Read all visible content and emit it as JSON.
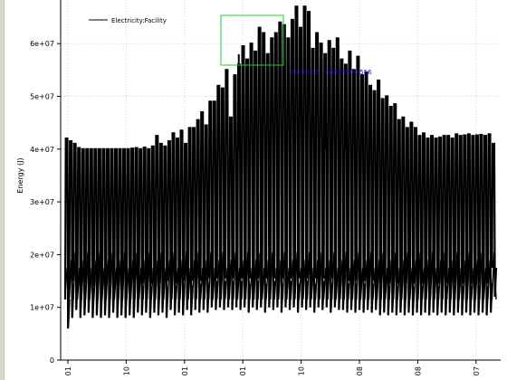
{
  "chart_data": {
    "type": "line",
    "ylabel": "Energy (J)",
    "ylim": [
      0,
      70000000
    ],
    "y_ticks": [
      {
        "value": 0,
        "label": "0"
      },
      {
        "value": 10000000,
        "label": "1e+07"
      },
      {
        "value": 20000000,
        "label": "2e+07"
      },
      {
        "value": 30000000,
        "label": "3e+07"
      },
      {
        "value": 40000000,
        "label": "4e+07"
      },
      {
        "value": 50000000,
        "label": "5e+07"
      },
      {
        "value": 60000000,
        "label": "6e+07"
      }
    ],
    "x_tick_labels": [
      "01",
      "10",
      "01",
      "01",
      "10",
      "08",
      "08",
      "07"
    ],
    "grid": true,
    "legend_position": "top-left",
    "series": [
      {
        "name": "Electricity:Facility",
        "color": "#000000",
        "daily_peak": [
          42000000,
          41500000,
          41000000,
          40200000,
          40000000,
          40000000,
          40000000,
          40000000,
          40000000,
          40000000,
          40000000,
          40000000,
          40000000,
          40000000,
          40000000,
          40000000,
          40100000,
          40200000,
          40000000,
          40300000,
          40000000,
          40500000,
          42500000,
          41000000,
          40500000,
          41500000,
          43000000,
          42000000,
          43500000,
          41000000,
          44000000,
          44000000,
          45500000,
          47000000,
          44500000,
          49000000,
          49000000,
          52000000,
          51500000,
          55000000,
          46000000,
          54000000,
          56000000,
          59500000,
          57000000,
          60000000,
          58500000,
          63000000,
          62000000,
          58000000,
          61000000,
          62000000,
          64000000,
          63500000,
          61000000,
          64500000,
          67000000,
          63000000,
          67000000,
          66000000,
          59000000,
          62000000,
          60000000,
          58000000,
          60500000,
          59000000,
          61000000,
          57000000,
          56000000,
          58500000,
          55000000,
          57500000,
          54000000,
          54500000,
          52000000,
          51000000,
          53000000,
          49500000,
          50000000,
          48000000,
          48500000,
          45500000,
          46000000,
          44000000,
          45000000,
          44000000,
          42500000,
          43000000,
          42000000,
          42500000,
          42000000,
          42200000,
          42500000,
          42500000,
          42000000,
          42800000,
          42500000,
          42600000,
          42800000,
          42500000,
          42600000,
          42700000,
          42500000,
          42800000,
          41000000
        ],
        "daily_low": [
          6000000,
          8000000,
          9500000,
          8000000,
          8500000,
          9000000,
          8000000,
          8500000,
          8000000,
          8500000,
          8000000,
          9000000,
          8000000,
          8500000,
          8000000,
          8500000,
          8000000,
          9000000,
          8500000,
          9000000,
          8000000,
          9000000,
          8500000,
          9000000,
          8000000,
          9500000,
          8500000,
          9000000,
          8500000,
          9500000,
          8500000,
          9500000,
          9000000,
          9500000,
          9000000,
          10000000,
          9500000,
          10000000,
          9500000,
          10000000,
          9500000,
          10000000,
          9500000,
          10000000,
          9000000,
          10000000,
          9500000,
          10000000,
          9000000,
          10000000,
          9500000,
          10000000,
          9000000,
          10000000,
          9500000,
          10000000,
          9000000,
          10000000,
          9500000,
          10000000,
          9000000,
          10000000,
          9500000,
          10000000,
          9000000,
          10000000,
          9500000,
          9500000,
          9000000,
          9500000,
          9000000,
          9500000,
          9000000,
          9500000,
          9000000,
          9500000,
          8500000,
          9000000,
          8500000,
          9000000,
          8500000,
          9000000,
          8500000,
          9000000,
          8500000,
          9000000,
          8500000,
          9000000,
          8500000,
          9000000,
          8500000,
          9000000,
          8500000,
          9000000,
          8500000,
          9000000,
          8500000,
          9000000,
          8500000,
          9000000,
          8500000,
          9000000,
          8500000,
          9000000,
          12000000
        ],
        "spikes": [
          {
            "day": 42,
            "value": 58000000
          },
          {
            "day": 63,
            "value": 52000000
          },
          {
            "day": 68,
            "value": 49000000
          }
        ]
      }
    ],
    "annotation": {
      "text": "00:00:01 - 66828300.556"
    }
  }
}
